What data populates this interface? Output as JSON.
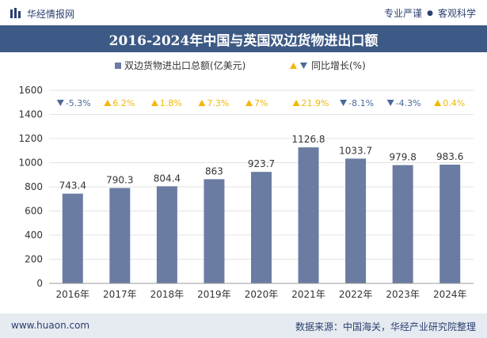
{
  "header": {
    "brand": "华经情报网",
    "slogan_left": "专业严谨",
    "slogan_right": "客观科学"
  },
  "chart_data": {
    "type": "bar",
    "title": "2016-2024年中国与英国双边货物进出口额",
    "categories": [
      "2016年",
      "2017年",
      "2018年",
      "2019年",
      "2020年",
      "2021年",
      "2022年",
      "2023年",
      "2024年"
    ],
    "series": [
      {
        "name": "双边货物进出口总额(亿美元)",
        "values": [
          743.4,
          790.3,
          804.4,
          863,
          923.7,
          1126.8,
          1033.7,
          979.8,
          983.6
        ],
        "labels": [
          "743.4",
          "790.3",
          "804.4",
          "863",
          "923.7",
          "1126.8",
          "1033.7",
          "979.8",
          "983.6"
        ],
        "color": "#6b7ca3"
      },
      {
        "name": "同比增长(%)",
        "values": [
          -5.3,
          6.2,
          1.8,
          7.3,
          7,
          21.9,
          -8.1,
          -4.3,
          0.4
        ],
        "labels": [
          "-5.3%",
          "6.2%",
          "1.8%",
          "7.3%",
          "7%",
          "21.9%",
          "-8.1%",
          "-4.3%",
          "0.4%"
        ],
        "up_color": "#f2b705",
        "down_color": "#4a6a9b"
      }
    ],
    "yticks": [
      0,
      200,
      400,
      600,
      800,
      1000,
      1200,
      1400,
      1600
    ],
    "ylim": [
      0,
      1600
    ],
    "legend_position": "top-center"
  },
  "footer": {
    "site": "www.huaon.com",
    "source": "数据来源：中国海关，华经产业研究院整理"
  }
}
